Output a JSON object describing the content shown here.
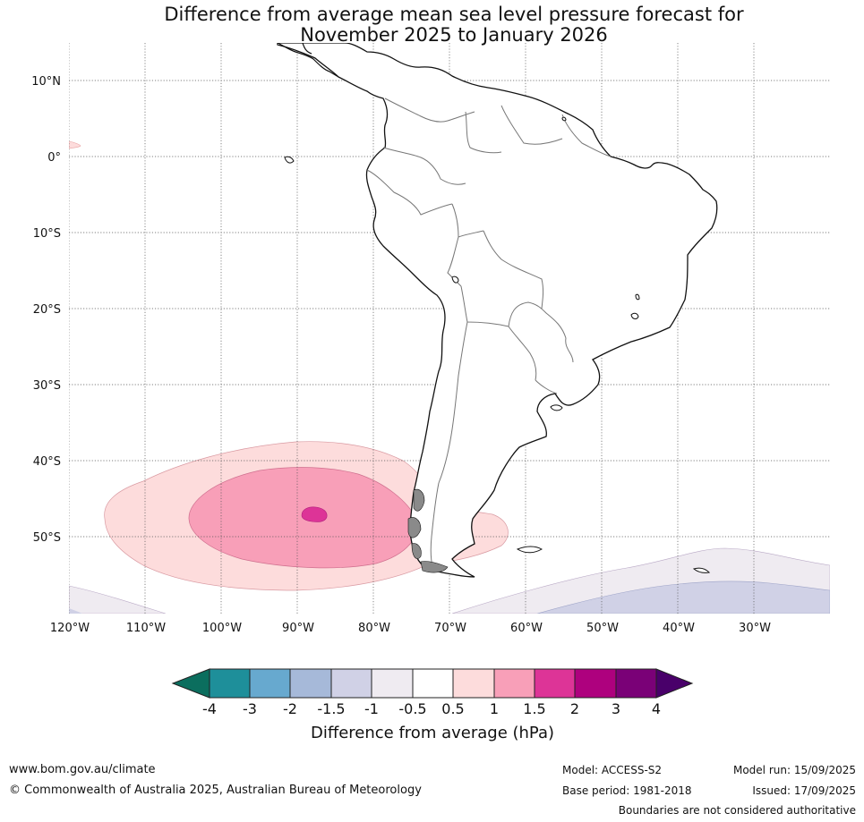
{
  "title": {
    "line1": "Difference from average mean sea level pressure forecast for",
    "line2": "November 2025 to January 2026"
  },
  "map": {
    "lat_labels": [
      "10°N",
      "0°",
      "10°S",
      "20°S",
      "30°S",
      "40°S",
      "50°S"
    ],
    "lon_labels": [
      "120°W",
      "110°W",
      "100°W",
      "90°W",
      "80°W",
      "70°W",
      "60°W",
      "50°W",
      "40°W",
      "30°W"
    ],
    "anomaly_regions": [
      {
        "name": "positive-anomaly-0.5-to-1",
        "range_hPa": "0.5 to 1",
        "location": "South Pacific, west of Patagonia"
      },
      {
        "name": "positive-anomaly-1-to-1.5",
        "range_hPa": "1 to 1.5",
        "location": "centred near 47°S 90°W"
      },
      {
        "name": "positive-anomaly-1.5-to-2",
        "range_hPa": "1.5 to 2",
        "location": "near 47°S 88°W"
      },
      {
        "name": "negative-anomaly-minus-1-to-minus-0.5",
        "range_hPa": "-1 to -0.5",
        "location": "South Atlantic, far south"
      },
      {
        "name": "negative-anomaly-minus-1.5-to-minus-1",
        "range_hPa": "-1.5 to -1",
        "location": "South Atlantic, south-east corner"
      }
    ]
  },
  "colorbar": {
    "ticks": [
      "-4",
      "-3",
      "-2",
      "-1.5",
      "-1",
      "-0.5",
      "0.5",
      "1",
      "1.5",
      "2",
      "3",
      "4"
    ],
    "colors": [
      "#1e8f9a",
      "#67a9cf",
      "#a6b9d9",
      "#d0d1e6",
      "#efebf1",
      "#ffffff",
      "#fddcdc",
      "#f89fb8",
      "#dd3497",
      "#ae017e",
      "#7a0177"
    ],
    "under_color": "#0b6e5e",
    "over_color": "#49006a",
    "label": "Difference from average (hPa)"
  },
  "footer": {
    "url": "www.bom.gov.au/climate",
    "copyright": "© Commonwealth of Australia 2025, Australian Bureau of Meteorology",
    "model": "Model: ACCESS-S2",
    "base_period": "Base period: 1981-2018",
    "model_run": "Model run: 15/09/2025",
    "issued": "Issued: 17/09/2025",
    "boundaries_note": "Boundaries are not considered authoritative"
  }
}
